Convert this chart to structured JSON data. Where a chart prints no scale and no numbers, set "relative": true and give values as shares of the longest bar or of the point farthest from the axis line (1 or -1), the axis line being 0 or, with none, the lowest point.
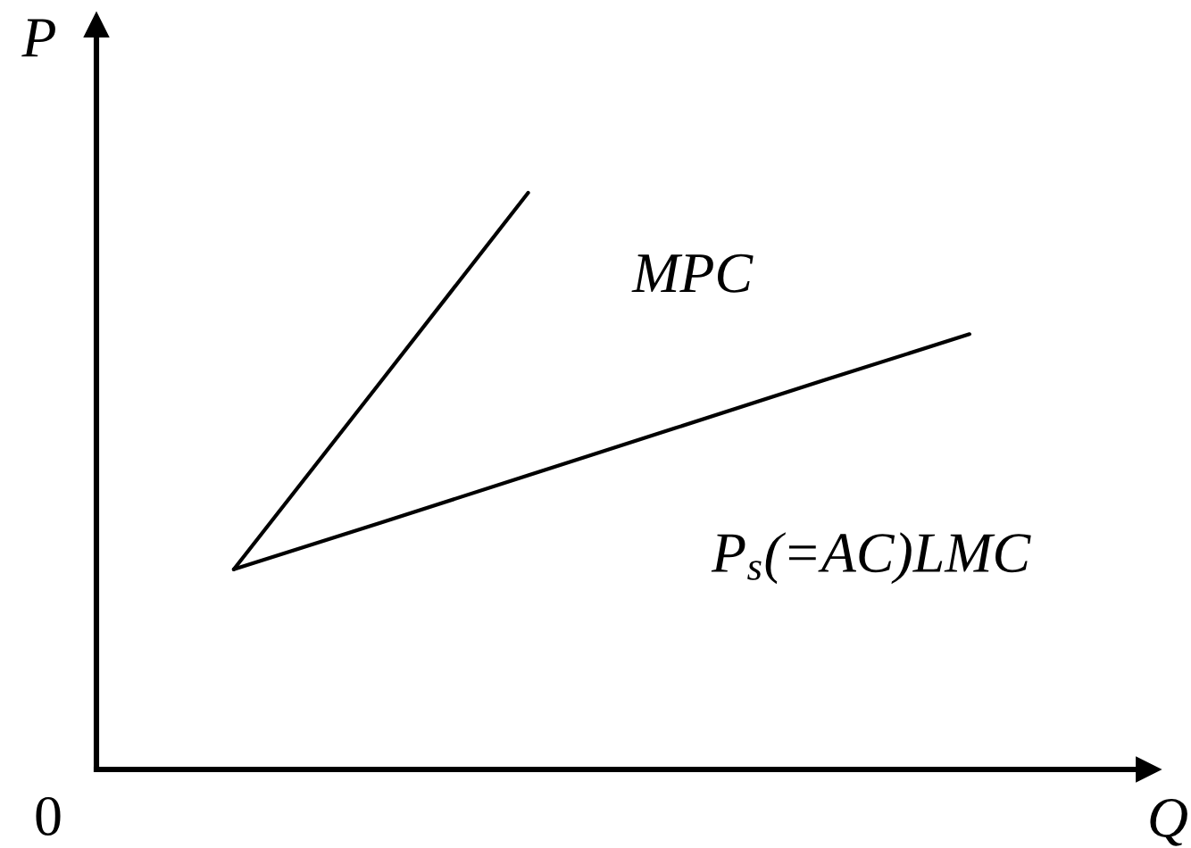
{
  "chart_data": {
    "type": "line",
    "relative": true,
    "xlabel": "Q",
    "ylabel": "P",
    "annotations": [
      "0"
    ],
    "line_style": "solid",
    "categories": [
      null,
      null,
      null,
      null,
      null,
      null
    ],
    "series": [
      {
        "name": "MPC",
        "color": "#000000",
        "values": [
          0.347,
          0.673,
          1,
          null,
          null,
          null
        ]
      },
      {
        "name": "P$_{s}$(=AC)LMC",
        "color": "#000000",
        "values": [
          0.347,
          0.428,
          0.51,
          0.592,
          0.674,
          0.755
        ]
      }
    ]
  }
}
